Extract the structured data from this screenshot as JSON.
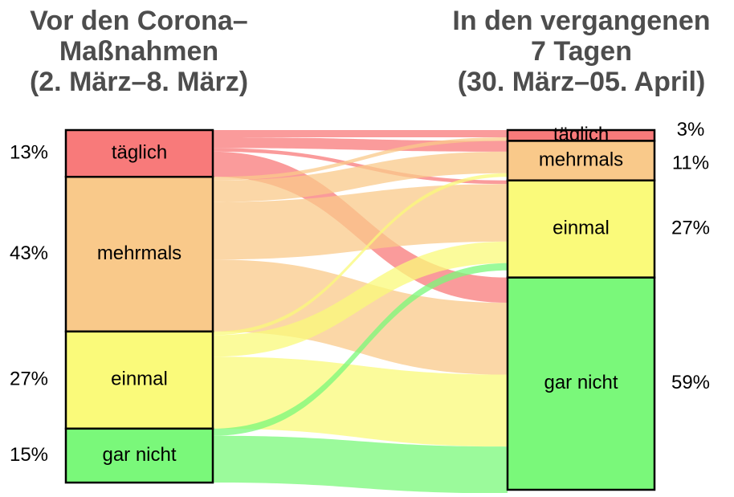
{
  "chart_data": {
    "type": "alluvial",
    "left_title": [
      "Vor den Corona–",
      "Maßnahmen",
      "(2. März–8. März)"
    ],
    "right_title": [
      "In den vergangenen",
      "7 Tagen",
      "(30. März–05. April)"
    ],
    "categories": [
      "täglich",
      "mehrmals",
      "einmal",
      "gar nicht"
    ],
    "colors": [
      "#f87a7a",
      "#f9c98a",
      "#fafa7a",
      "#7af87a"
    ],
    "left_values": [
      13,
      43,
      27,
      15
    ],
    "left_value_labels": [
      "13%",
      "43%",
      "27%",
      "15%"
    ],
    "right_values": [
      3,
      11,
      27,
      59
    ],
    "right_value_labels": [
      "3%",
      "11%",
      "27%",
      "59%"
    ],
    "flows": [
      [
        2,
        3,
        1,
        7
      ],
      [
        1,
        6,
        16,
        20
      ],
      [
        0,
        1,
        6,
        20
      ],
      [
        0,
        0,
        2,
        13
      ]
    ]
  }
}
